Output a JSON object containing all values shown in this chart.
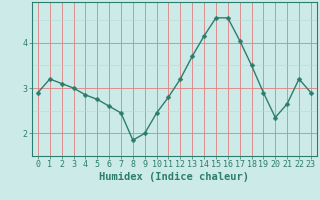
{
  "x": [
    0,
    1,
    2,
    3,
    4,
    5,
    6,
    7,
    8,
    9,
    10,
    11,
    12,
    13,
    14,
    15,
    16,
    17,
    18,
    19,
    20,
    21,
    22,
    23
  ],
  "y": [
    2.9,
    3.2,
    3.1,
    3.0,
    2.85,
    2.75,
    2.6,
    2.45,
    1.85,
    2.0,
    2.45,
    2.8,
    3.2,
    3.7,
    4.15,
    4.55,
    4.55,
    4.05,
    3.5,
    2.9,
    2.35,
    2.65,
    3.2,
    2.9
  ],
  "xlabel": "Humidex (Indice chaleur)",
  "line_color": "#2d7d6e",
  "marker": "D",
  "marker_size": 2.5,
  "line_width": 1.0,
  "bg_color": "#cceae8",
  "grid_major_color": "#e08080",
  "grid_minor_color": "#b8d8d5",
  "ylim": [
    1.5,
    4.9
  ],
  "xlim": [
    -0.5,
    23.5
  ],
  "yticks": [
    2,
    3,
    4
  ],
  "xticks": [
    0,
    1,
    2,
    3,
    4,
    5,
    6,
    7,
    8,
    9,
    10,
    11,
    12,
    13,
    14,
    15,
    16,
    17,
    18,
    19,
    20,
    21,
    22,
    23
  ],
  "tick_fontsize": 6,
  "xlabel_fontsize": 7.5
}
